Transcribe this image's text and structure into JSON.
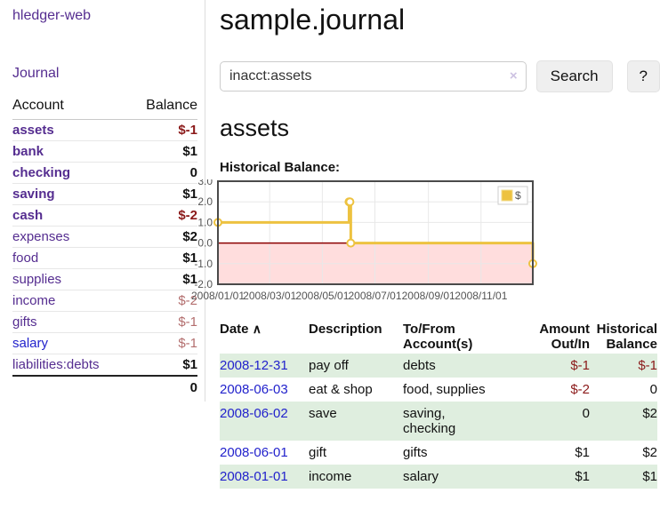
{
  "colors": {
    "purple_link": "#552d90",
    "blue_link": "#2222cc",
    "negative_strong": "#8b1a1a",
    "negative_soft": "#b36e6e",
    "row_green": "#dfeedf",
    "chart_line": "#EDC240",
    "chart_negative_fill": "#ffdddd",
    "chart_zero_line": "#8b0000"
  },
  "sidebar": {
    "brand": "hledger-web",
    "nav": {
      "journal": "Journal"
    },
    "table": {
      "account_header": "Account",
      "balance_header": "Balance"
    },
    "accounts": [
      {
        "name": "assets",
        "balance": "$-1"
      },
      {
        "name": "bank",
        "balance": "$1"
      },
      {
        "name": "checking",
        "balance": "0"
      },
      {
        "name": "saving",
        "balance": "$1"
      },
      {
        "name": "cash",
        "balance": "$-2"
      },
      {
        "name": "expenses",
        "balance": "$2"
      },
      {
        "name": "food",
        "balance": "$1"
      },
      {
        "name": "supplies",
        "balance": "$1"
      },
      {
        "name": "income",
        "balance": "$-2"
      },
      {
        "name": "gifts",
        "balance": "$-1"
      },
      {
        "name": "salary",
        "balance": "$-1"
      },
      {
        "name": "liabilities:debts",
        "balance": "$1"
      }
    ],
    "total": "0"
  },
  "main": {
    "title": "sample.journal",
    "search": {
      "value": "inacct:assets",
      "clear_glyph": "×",
      "search_button": "Search",
      "help_button": "?"
    },
    "account_heading": "assets",
    "chart_heading": "Historical Balance:"
  },
  "chart_data": {
    "type": "line",
    "title": "Historical Balance:",
    "step": true,
    "grid": true,
    "xlim": [
      "2008-01-01",
      "2008-12-31"
    ],
    "ylim": [
      -2,
      3
    ],
    "y_ticks": [
      3,
      2,
      1,
      0,
      -1,
      -2
    ],
    "x_ticks": [
      {
        "date": "2008-01-01",
        "label": "2008/01/01"
      },
      {
        "date": "2008-03-01",
        "label": "2008/03/01"
      },
      {
        "date": "2008-05-01",
        "label": "2008/05/01"
      },
      {
        "date": "2008-07-01",
        "label": "2008/07/01"
      },
      {
        "date": "2008-09-01",
        "label": "2008/09/01"
      },
      {
        "date": "2008-11-01",
        "label": "2008/11/01"
      }
    ],
    "legend": {
      "position": "top-right",
      "entries": [
        {
          "label": "$",
          "color": "#EDC240"
        }
      ]
    },
    "series": [
      {
        "name": "$",
        "color": "#EDC240",
        "points": [
          {
            "date": "2008-01-01",
            "value": 1
          },
          {
            "date": "2008-06-01",
            "value": 2
          },
          {
            "date": "2008-06-02",
            "value": 2
          },
          {
            "date": "2008-06-03",
            "value": 0
          },
          {
            "date": "2008-12-31",
            "value": -1
          }
        ]
      }
    ],
    "negative_region_color": "#ffdddd",
    "zero_line_color": "#8b0000"
  },
  "register": {
    "headers": {
      "date": "Date",
      "description": "Description",
      "account": "To/From Account(s)",
      "amount": "Amount Out/In",
      "balance": "Historical Balance"
    },
    "sort_caret": "∧",
    "rows": [
      {
        "date": "2008-12-31",
        "description": "pay off",
        "account": "debts",
        "amount": "$-1",
        "balance": "$-1"
      },
      {
        "date": "2008-06-03",
        "description": "eat & shop",
        "account": "food, supplies",
        "amount": "$-2",
        "balance": "0"
      },
      {
        "date": "2008-06-02",
        "description": "save",
        "account": "saving, checking",
        "amount": "0",
        "balance": "$2"
      },
      {
        "date": "2008-06-01",
        "description": "gift",
        "account": "gifts",
        "amount": "$1",
        "balance": "$2"
      },
      {
        "date": "2008-01-01",
        "description": "income",
        "account": "salary",
        "amount": "$1",
        "balance": "$1"
      }
    ]
  }
}
